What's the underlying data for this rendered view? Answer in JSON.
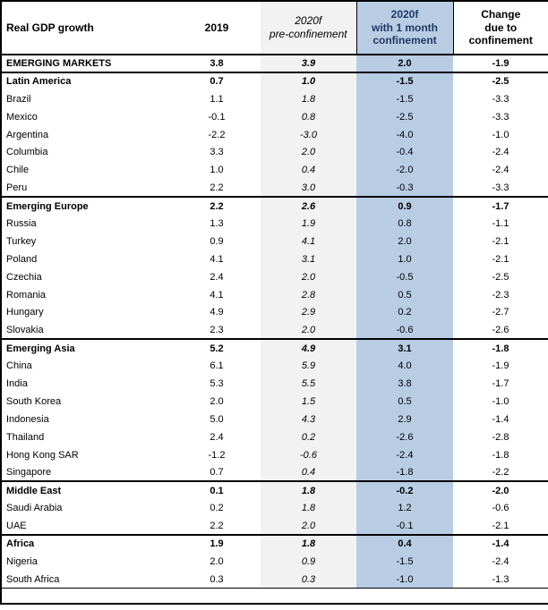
{
  "colors": {
    "shade_gray": "#F2F2F2",
    "accent_blue": "#B8CCE4",
    "header_navy": "#1F3864",
    "border_black": "#000000"
  },
  "header": {
    "title": "Real GDP growth",
    "col_2019": "2019",
    "pre": {
      "line1": "2020f",
      "line2": "pre-confinement"
    },
    "conf": {
      "line1": "2020f",
      "line2": "with 1 month",
      "line3": "confinement"
    },
    "change": {
      "line1": "Change",
      "line2": "due to",
      "line3": "confinement"
    }
  },
  "chart_data": {
    "type": "table",
    "title": "Real GDP growth",
    "columns": [
      "Real GDP growth",
      "2019",
      "2020f pre-confinement",
      "2020f with 1 month confinement",
      "Change due to confinement"
    ]
  },
  "rows": [
    {
      "name": "EMERGING MARKETS",
      "y2019": "3.8",
      "pre": "3.9",
      "conf": "2.0",
      "change": "-1.9",
      "bold": true,
      "thick_top": true
    },
    {
      "name": "Latin America",
      "y2019": "0.7",
      "pre": "1.0",
      "conf": "-1.5",
      "change": "-2.5",
      "bold": true,
      "thick_top": true
    },
    {
      "name": "Brazil",
      "y2019": "1.1",
      "pre": "1.8",
      "conf": "-1.5",
      "change": "-3.3",
      "bold": false,
      "thick_top": false
    },
    {
      "name": "Mexico",
      "y2019": "-0.1",
      "pre": "0.8",
      "conf": "-2.5",
      "change": "-3.3",
      "bold": false,
      "thick_top": false
    },
    {
      "name": "Argentina",
      "y2019": "-2.2",
      "pre": "-3.0",
      "conf": "-4.0",
      "change": "-1.0",
      "bold": false,
      "thick_top": false
    },
    {
      "name": "Columbia",
      "y2019": "3.3",
      "pre": "2.0",
      "conf": "-0.4",
      "change": "-2.4",
      "bold": false,
      "thick_top": false
    },
    {
      "name": "Chile",
      "y2019": "1.0",
      "pre": "0.4",
      "conf": "-2.0",
      "change": "-2.4",
      "bold": false,
      "thick_top": false
    },
    {
      "name": "Peru",
      "y2019": "2.2",
      "pre": "3.0",
      "conf": "-0.3",
      "change": "-3.3",
      "bold": false,
      "thick_top": false
    },
    {
      "name": "Emerging Europe",
      "y2019": "2.2",
      "pre": "2.6",
      "conf": "0.9",
      "change": "-1.7",
      "bold": true,
      "thick_top": true
    },
    {
      "name": "Russia",
      "y2019": "1.3",
      "pre": "1.9",
      "conf": "0.8",
      "change": "-1.1",
      "bold": false,
      "thick_top": false
    },
    {
      "name": "Turkey",
      "y2019": "0.9",
      "pre": "4.1",
      "conf": "2.0",
      "change": "-2.1",
      "bold": false,
      "thick_top": false
    },
    {
      "name": "Poland",
      "y2019": "4.1",
      "pre": "3.1",
      "conf": "1.0",
      "change": "-2.1",
      "bold": false,
      "thick_top": false
    },
    {
      "name": "Czechia",
      "y2019": "2.4",
      "pre": "2.0",
      "conf": "-0.5",
      "change": "-2.5",
      "bold": false,
      "thick_top": false
    },
    {
      "name": "Romania",
      "y2019": "4.1",
      "pre": "2.8",
      "conf": "0.5",
      "change": "-2.3",
      "bold": false,
      "thick_top": false
    },
    {
      "name": "Hungary",
      "y2019": "4.9",
      "pre": "2.9",
      "conf": "0.2",
      "change": "-2.7",
      "bold": false,
      "thick_top": false
    },
    {
      "name": "Slovakia",
      "y2019": "2.3",
      "pre": "2.0",
      "conf": "-0.6",
      "change": "-2.6",
      "bold": false,
      "thick_top": false
    },
    {
      "name": "Emerging Asia",
      "y2019": "5.2",
      "pre": "4.9",
      "conf": "3.1",
      "change": "-1.8",
      "bold": true,
      "thick_top": true
    },
    {
      "name": "China",
      "y2019": "6.1",
      "pre": "5.9",
      "conf": "4.0",
      "change": "-1.9",
      "bold": false,
      "thick_top": false
    },
    {
      "name": "India",
      "y2019": "5.3",
      "pre": "5.5",
      "conf": "3.8",
      "change": "-1.7",
      "bold": false,
      "thick_top": false
    },
    {
      "name": "South Korea",
      "y2019": "2.0",
      "pre": "1.5",
      "conf": "0.5",
      "change": "-1.0",
      "bold": false,
      "thick_top": false
    },
    {
      "name": "Indonesia",
      "y2019": "5.0",
      "pre": "4.3",
      "conf": "2.9",
      "change": "-1.4",
      "bold": false,
      "thick_top": false
    },
    {
      "name": "Thailand",
      "y2019": "2.4",
      "pre": "0.2",
      "conf": "-2.6",
      "change": "-2.8",
      "bold": false,
      "thick_top": false
    },
    {
      "name": "Hong Kong SAR",
      "y2019": "-1.2",
      "pre": "-0.6",
      "conf": "-2.4",
      "change": "-1.8",
      "bold": false,
      "thick_top": false
    },
    {
      "name": "Singapore",
      "y2019": "0.7",
      "pre": "0.4",
      "conf": "-1.8",
      "change": "-2.2",
      "bold": false,
      "thick_top": false
    },
    {
      "name": "Middle East",
      "y2019": "0.1",
      "pre": "1.8",
      "conf": "-0.2",
      "change": "-2.0",
      "bold": true,
      "thick_top": true
    },
    {
      "name": "Saudi Arabia",
      "y2019": "0.2",
      "pre": "1.8",
      "conf": "1.2",
      "change": "-0.6",
      "bold": false,
      "thick_top": false
    },
    {
      "name": "UAE",
      "y2019": "2.2",
      "pre": "2.0",
      "conf": "-0.1",
      "change": "-2.1",
      "bold": false,
      "thick_top": false
    },
    {
      "name": "Africa",
      "y2019": "1.9",
      "pre": "1.8",
      "conf": "0.4",
      "change": "-1.4",
      "bold": true,
      "thick_top": true
    },
    {
      "name": "Nigeria",
      "y2019": "2.0",
      "pre": "0.9",
      "conf": "-1.5",
      "change": "-2.4",
      "bold": false,
      "thick_top": false
    },
    {
      "name": "South Africa",
      "y2019": "0.3",
      "pre": "0.3",
      "conf": "-1.0",
      "change": "-1.3",
      "bold": false,
      "thick_top": false
    }
  ]
}
